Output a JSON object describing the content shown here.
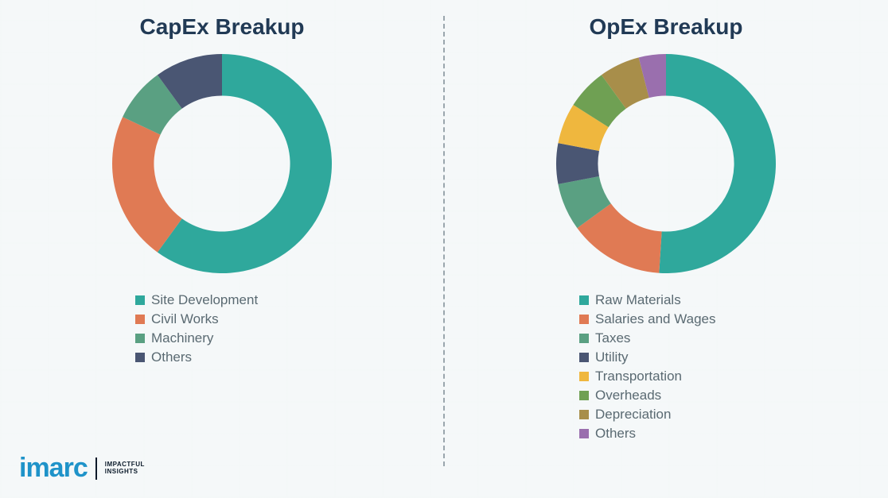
{
  "background_color": "#f5f7f8",
  "divider_color": "#9aa6ad",
  "legend_text_color": "#5a6a72",
  "title_color": "#213a55",
  "title_fontsize": 28,
  "legend_fontsize": 17,
  "logo": {
    "brand": "imarc",
    "brand_color": "#1f93c9",
    "tagline_line1": "IMPACTFUL",
    "tagline_line2": "INSIGHTS",
    "tagline_color": "#0b1a2a"
  },
  "capex": {
    "title": "CapEx Breakup",
    "type": "donut",
    "inner_radius_pct": 62,
    "start_angle_deg": 0,
    "segments": [
      {
        "label": "Site Development",
        "value": 60,
        "color": "#2fa89c"
      },
      {
        "label": "Civil Works",
        "value": 22,
        "color": "#e07a54"
      },
      {
        "label": "Machinery",
        "value": 8,
        "color": "#5aa082"
      },
      {
        "label": "Others",
        "value": 10,
        "color": "#4a5673"
      }
    ]
  },
  "opex": {
    "title": "OpEx Breakup",
    "type": "donut",
    "inner_radius_pct": 62,
    "start_angle_deg": 0,
    "segments": [
      {
        "label": "Raw Materials",
        "value": 51,
        "color": "#2fa89c"
      },
      {
        "label": "Salaries and Wages",
        "value": 14,
        "color": "#e07a54"
      },
      {
        "label": "Taxes",
        "value": 7,
        "color": "#5aa082"
      },
      {
        "label": "Utility",
        "value": 6,
        "color": "#4a5673"
      },
      {
        "label": "Transportation",
        "value": 6,
        "color": "#efb73e"
      },
      {
        "label": "Overheads",
        "value": 6,
        "color": "#6fa053"
      },
      {
        "label": "Depreciation",
        "value": 6,
        "color": "#a88e4a"
      },
      {
        "label": "Others",
        "value": 4,
        "color": "#9a6fae"
      }
    ]
  }
}
